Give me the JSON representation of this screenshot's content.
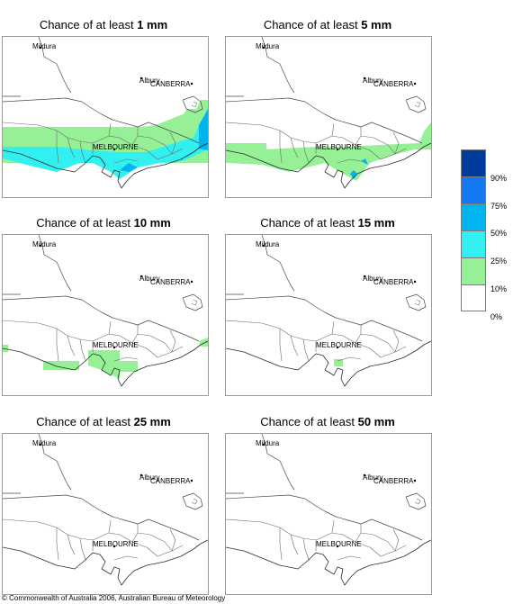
{
  "panels": [
    {
      "prefix": "Chance of at least ",
      "amount": "1 mm",
      "fill": "p1"
    },
    {
      "prefix": "Chance of at least ",
      "amount": "5 mm",
      "fill": "p5"
    },
    {
      "prefix": "Chance of at least ",
      "amount": "10 mm",
      "fill": "p10"
    },
    {
      "prefix": "Chance of at least ",
      "amount": "15 mm",
      "fill": "p15"
    },
    {
      "prefix": "Chance of at least ",
      "amount": "25 mm",
      "fill": "none"
    },
    {
      "prefix": "Chance of at least ",
      "amount": "50 mm",
      "fill": "none"
    }
  ],
  "places": {
    "mildura": "Mildura",
    "canberra": "CANBERRA",
    "albury": "Albury",
    "melbourne": "MELBOURNE"
  },
  "legend": {
    "ticks": [
      "90%",
      "75%",
      "50%",
      "25%",
      "10%",
      "0%"
    ],
    "colors": [
      "#003c9e",
      "#1478f0",
      "#00b4f0",
      "#32f0f0",
      "#96f096",
      "#ffffff"
    ]
  },
  "copyright": "© Commonwealth of Australia 2006, Australian Bureau of Meteorology"
}
